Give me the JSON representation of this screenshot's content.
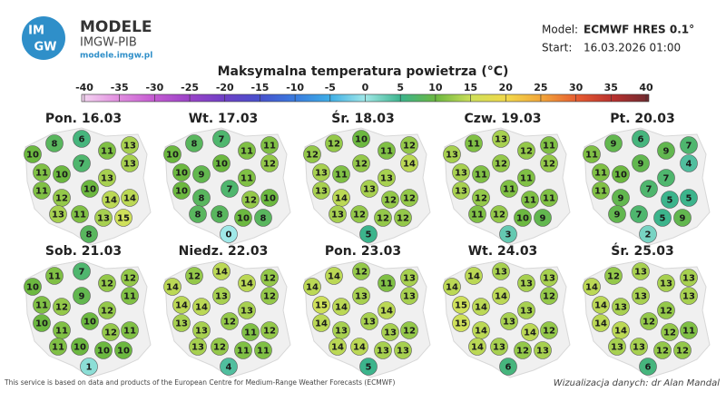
{
  "header": {
    "logo_top": "IM",
    "logo_bottom": "GW",
    "brand": "MODELE",
    "org": "IMGW-PIB",
    "url": "modele.imgw.pl",
    "model_label": "Model:",
    "model": "ECMWF HRES 0.1°",
    "start_label": "Start:",
    "start": "16.03.2026 01:00"
  },
  "colorbar": {
    "title": "Maksymalna temperatura powietrza (°C)",
    "ticks": [
      -40,
      -35,
      -30,
      -25,
      -20,
      -15,
      -10,
      -5,
      0,
      5,
      10,
      15,
      20,
      25,
      30,
      35,
      40
    ]
  },
  "panels": [
    {
      "date": "Pon. 16.03",
      "values": [
        10,
        8,
        6,
        11,
        13,
        11,
        10,
        7,
        13,
        13,
        11,
        12,
        10,
        14,
        14,
        13,
        11,
        13,
        15,
        8
      ]
    },
    {
      "date": "Wt. 17.03",
      "values": [
        10,
        8,
        7,
        11,
        11,
        10,
        9,
        10,
        11,
        12,
        10,
        8,
        7,
        12,
        10,
        8,
        8,
        10,
        8,
        0
      ]
    },
    {
      "date": "Śr. 18.03",
      "values": [
        12,
        12,
        10,
        11,
        12,
        13,
        11,
        12,
        13,
        14,
        13,
        14,
        13,
        12,
        12,
        13,
        12,
        12,
        12,
        5
      ]
    },
    {
      "date": "Czw. 19.03",
      "values": [
        13,
        11,
        13,
        12,
        11,
        13,
        11,
        12,
        11,
        12,
        13,
        12,
        11,
        11,
        11,
        11,
        12,
        10,
        9,
        3
      ]
    },
    {
      "date": "Pt. 20.03",
      "values": [
        11,
        9,
        6,
        9,
        7,
        11,
        10,
        9,
        7,
        4,
        11,
        9,
        7,
        5,
        5,
        9,
        7,
        5,
        9,
        2
      ]
    },
    {
      "date": "Sob. 21.03",
      "values": [
        10,
        11,
        7,
        12,
        12,
        11,
        12,
        9,
        12,
        11,
        10,
        11,
        10,
        12,
        11,
        11,
        10,
        10,
        10,
        1
      ]
    },
    {
      "date": "Niedz. 22.03",
      "values": [
        14,
        12,
        14,
        14,
        12,
        14,
        14,
        13,
        13,
        12,
        13,
        13,
        12,
        11,
        12,
        13,
        12,
        11,
        11,
        4
      ]
    },
    {
      "date": "Pon. 23.03",
      "values": [
        14,
        14,
        12,
        11,
        13,
        15,
        14,
        13,
        14,
        13,
        14,
        13,
        13,
        13,
        12,
        14,
        14,
        13,
        13,
        5
      ]
    },
    {
      "date": "Wt. 24.03",
      "values": [
        14,
        14,
        13,
        13,
        13,
        15,
        14,
        14,
        13,
        12,
        15,
        14,
        13,
        14,
        12,
        14,
        13,
        12,
        13,
        6
      ]
    },
    {
      "date": "Śr. 25.03",
      "values": [
        14,
        12,
        13,
        13,
        13,
        14,
        13,
        13,
        12,
        13,
        14,
        14,
        12,
        12,
        11,
        13,
        13,
        12,
        12,
        6
      ]
    }
  ],
  "footer": {
    "left": "This service is based on data and products of the European Centre for Medium-Range Weather Forecasts (ECMWF)",
    "right": "Wizualizacja danych: dr Alan Mandal"
  }
}
